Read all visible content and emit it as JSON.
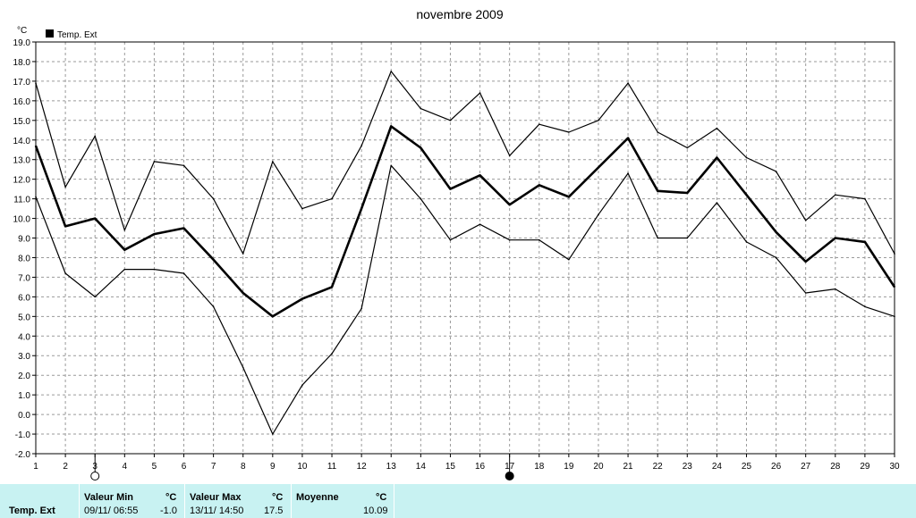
{
  "chart_data": {
    "type": "line",
    "title": "novembre 2009",
    "unit": "°C",
    "legend": {
      "label": "Temp. Ext",
      "color": "#000000",
      "placement": "top-left"
    },
    "ylim": [
      -2,
      19
    ],
    "yticks": [
      "-2.0",
      "-1.0",
      "0.0",
      "1.0",
      "2.0",
      "3.0",
      "4.0",
      "5.0",
      "6.0",
      "7.0",
      "8.0",
      "9.0",
      "10.0",
      "11.0",
      "12.0",
      "13.0",
      "14.0",
      "15.0",
      "16.0",
      "17.0",
      "18.0",
      "19.0"
    ],
    "x": [
      1,
      2,
      3,
      4,
      5,
      6,
      7,
      8,
      9,
      10,
      11,
      12,
      13,
      14,
      15,
      16,
      17,
      18,
      19,
      20,
      21,
      22,
      23,
      24,
      25,
      26,
      27,
      28,
      29,
      30
    ],
    "grid": true,
    "series": [
      {
        "values": [
          16.9,
          11.6,
          14.2,
          9.4,
          12.9,
          12.7,
          11.0,
          8.2,
          12.9,
          10.5,
          11.0,
          13.7,
          17.5,
          15.6,
          15.0,
          16.4,
          13.2,
          14.8,
          14.4,
          15.0,
          16.9,
          14.4,
          13.6,
          14.6,
          13.1,
          12.4,
          9.9,
          11.2,
          11.0,
          8.2
        ]
      },
      {
        "values": [
          13.7,
          9.6,
          10.0,
          8.4,
          9.2,
          9.5,
          7.9,
          6.2,
          5.0,
          5.9,
          6.5,
          10.5,
          14.7,
          13.6,
          11.5,
          12.2,
          10.7,
          11.7,
          11.1,
          12.6,
          14.1,
          11.4,
          11.3,
          13.1,
          11.2,
          9.3,
          7.8,
          9.0,
          8.8,
          6.5
        ]
      },
      {
        "values": [
          11.1,
          7.2,
          6.0,
          7.4,
          7.4,
          7.2,
          5.5,
          2.4,
          -1.0,
          1.5,
          3.1,
          5.4,
          12.7,
          11.0,
          8.9,
          9.7,
          8.9,
          8.9,
          7.9,
          10.2,
          12.3,
          9.0,
          9.0,
          10.8,
          8.8,
          8.0,
          6.2,
          6.4,
          5.5,
          5.0
        ]
      }
    ],
    "moon_markers": [
      {
        "x": 3,
        "phase": "new-moon-outline"
      },
      {
        "x": 17,
        "phase": "full-moon-filled"
      }
    ]
  },
  "footer": {
    "row_label": "Temp. Ext",
    "min": {
      "header": "Valeur Min",
      "unit": "°C",
      "datetime": "09/11/ 06:55",
      "value": "-1.0"
    },
    "max": {
      "header": "Valeur Max",
      "unit": "°C",
      "datetime": "13/11/ 14:50",
      "value": "17.5"
    },
    "avg": {
      "header": "Moyenne",
      "unit": "°C",
      "value": "10.09"
    }
  }
}
